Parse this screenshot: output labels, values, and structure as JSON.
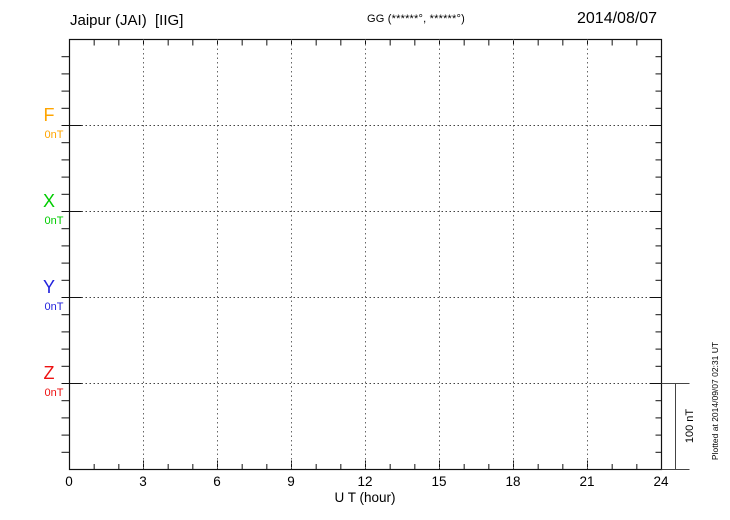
{
  "header": {
    "station_title": "Jaipur (JAI)  [IIG]",
    "gg_coords": "GG (******°, ******°)",
    "date": "2014/08/07"
  },
  "components": [
    {
      "label": "F",
      "baseline_value": "0nT",
      "color": "#FFA500"
    },
    {
      "label": "X",
      "baseline_value": "0nT",
      "color": "#00CC00"
    },
    {
      "label": "Y",
      "baseline_value": "0nT",
      "color": "#2222DD"
    },
    {
      "label": "Z",
      "baseline_value": "0nT",
      "color": "#EE1111"
    }
  ],
  "x_axis": {
    "title": "U T (hour)",
    "tick_labels": [
      "0",
      "3",
      "6",
      "9",
      "12",
      "15",
      "18",
      "21",
      "24"
    ]
  },
  "scale_bar": {
    "label": "100 nT"
  },
  "plot_note": "Plotted at 2014/09/07 02:31 UT",
  "chart_data": {
    "type": "line",
    "title": "Jaipur (JAI) [IIG] magnetogram for 2014/08/07",
    "xlabel": "U T (hour)",
    "x_range": [
      0,
      24
    ],
    "x_major_tick_hours": 3,
    "x_minor_tick_hours": 1,
    "y_scale_bar_nT": 100,
    "y_minor_tick_nT": 20,
    "grid": "dotted vertical lines every 3 hours; dotted horizontal line at each component baseline",
    "series": [
      {
        "name": "F",
        "baseline_label": "0nT",
        "color": "#FFA500",
        "values": []
      },
      {
        "name": "X",
        "baseline_label": "0nT",
        "color": "#00CC00",
        "values": []
      },
      {
        "name": "Y",
        "baseline_label": "0nT",
        "color": "#2222DD",
        "values": []
      },
      {
        "name": "Z",
        "baseline_label": "0nT",
        "color": "#EE1111",
        "values": []
      }
    ],
    "note": "no data traces are plotted (empty magnetogram)"
  }
}
